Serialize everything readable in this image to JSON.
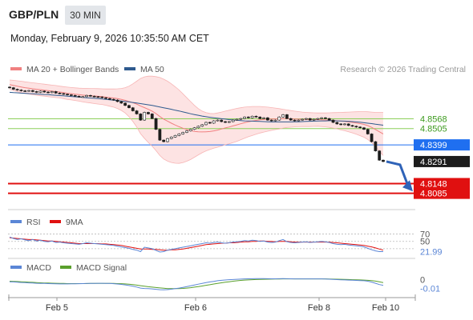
{
  "header": {
    "symbol": "GBP/PLN",
    "timeframe": "30 MIN",
    "datetime": "Monday, February 9, 2026 10:35:50 AM CET"
  },
  "colors": {
    "ma20": "#f08080",
    "ma50": "#2e5a8e",
    "bands_fill": "#fde3e3",
    "support": "#e01010",
    "resistance": "#8ccf5a",
    "last_price_bg": "#1c1c1c",
    "ref_level_bg": "#1f6ff0",
    "rsi": "#5b86d6",
    "rsi_ma": "#e01010",
    "macd": "#5b86d6",
    "macd_signal": "#5aa02c",
    "forecast_arrow": "#2f63b8"
  },
  "chart_data": [
    {
      "type": "candlestick",
      "panel": "price",
      "legend": [
        {
          "label": "MA 20 + Bollinger Bands",
          "color_key": "ma20"
        },
        {
          "label": "MA 50",
          "color_key": "ma50"
        }
      ],
      "legend_placement": "top-left",
      "watermark": "Research © 2026 Trading Central",
      "x_tick_labels": [
        "Feb 5",
        "Feb 6",
        "Feb 8",
        "Feb 10"
      ],
      "ylim": [
        4.8,
        4.882
      ],
      "resistance_levels": [
        "4.8568",
        "4.8505"
      ],
      "reference_level": "4.8399",
      "last_price": "4.8291",
      "support_levels": [
        "4.8148",
        "4.8085"
      ],
      "close": [
        4.877,
        4.876,
        4.8755,
        4.875,
        4.8748,
        4.8752,
        4.8745,
        4.874,
        4.8748,
        4.8742,
        4.8738,
        4.8745,
        4.8735,
        4.8732,
        4.8728,
        4.8724,
        4.872,
        4.8715,
        4.871,
        4.8712,
        4.872,
        4.8715,
        4.8712,
        4.871,
        4.8705,
        4.87,
        4.8695,
        4.869,
        4.868,
        4.867,
        4.8655,
        4.864,
        4.862,
        4.86,
        4.856,
        4.861,
        4.86,
        4.857,
        4.85,
        4.843,
        4.842,
        4.844,
        4.845,
        4.846,
        4.847,
        4.848,
        4.849,
        4.85,
        4.851,
        4.852,
        4.853,
        4.8545,
        4.854,
        4.8555,
        4.856,
        4.855,
        4.8545,
        4.855,
        4.856,
        4.8565,
        4.857,
        4.858,
        4.8575,
        4.8585,
        4.858,
        4.857,
        4.8575,
        4.856,
        4.8555,
        4.856,
        4.858,
        4.8595,
        4.857,
        4.856,
        4.8555,
        4.856,
        4.8565,
        4.857,
        4.856,
        4.8565,
        4.857,
        4.8575,
        4.857,
        4.856,
        4.8545,
        4.8535,
        4.853,
        4.8535,
        4.8525,
        4.852,
        4.8515,
        4.851,
        4.85,
        4.847,
        4.842,
        4.836,
        4.83,
        4.8291
      ],
      "ma20": [
        4.879,
        4.8785,
        4.878,
        4.8775,
        4.877,
        4.8767,
        4.8763,
        4.876,
        4.8757,
        4.8754,
        4.8751,
        4.8748,
        4.8745,
        4.8742,
        4.8738,
        4.8734,
        4.8731,
        4.8728,
        4.8725,
        4.8722,
        4.872,
        4.8718,
        4.8716,
        4.8714,
        4.8712,
        4.8709,
        4.8706,
        4.8703,
        4.8699,
        4.8694,
        4.8688,
        4.8681,
        4.8673,
        4.8664,
        4.8651,
        4.8641,
        4.863,
        4.8618,
        4.8602,
        4.8583,
        4.8566,
        4.8553,
        4.854,
        4.8528,
        4.8517,
        4.8507,
        4.8499,
        4.8492,
        4.8487,
        4.8484,
        4.8483,
        4.8484,
        4.8486,
        4.849,
        4.8495,
        4.8502,
        4.8509,
        4.8515,
        4.8522,
        4.8529,
        4.8536,
        4.8543,
        4.8549,
        4.8554,
        4.8558,
        4.8562,
        4.8564,
        4.8566,
        4.8567,
        4.8568,
        4.8568,
        4.8569,
        4.8569,
        4.8568,
        4.8567,
        4.8566,
        4.8565,
        4.8564,
        4.8563,
        4.8563,
        4.8563,
        4.8562,
        4.8561,
        4.856,
        4.8558,
        4.8556,
        4.8553,
        4.8551,
        4.8548,
        4.8545,
        4.8541,
        4.8537,
        4.8532,
        4.8524,
        4.8513,
        4.8499,
        4.8484,
        4.847
      ],
      "bb_upper": [
        4.882,
        4.8818,
        4.8815,
        4.8812,
        4.8808,
        4.8805,
        4.8802,
        4.8799,
        4.8796,
        4.8793,
        4.879,
        4.8787,
        4.8784,
        4.878,
        4.8777,
        4.8774,
        4.8771,
        4.8769,
        4.8767,
        4.8766,
        4.8766,
        4.8765,
        4.8765,
        4.8764,
        4.8763,
        4.8762,
        4.8762,
        4.8762,
        4.8763,
        4.8765,
        4.877,
        4.878,
        4.8795,
        4.8812,
        4.883,
        4.884,
        4.8845,
        4.8845,
        4.8842,
        4.8836,
        4.8825,
        4.8812,
        4.8795,
        4.8776,
        4.8755,
        4.873,
        4.8705,
        4.868,
        4.8655,
        4.8634,
        4.8618,
        4.8608,
        4.8603,
        4.8602,
        4.8606,
        4.8612,
        4.8618,
        4.8624,
        4.863,
        4.8636,
        4.864,
        4.8644,
        4.8646,
        4.8648,
        4.8648,
        4.8648,
        4.8646,
        4.8644,
        4.8641,
        4.8638,
        4.8634,
        4.863,
        4.8626,
        4.8622,
        4.8618,
        4.8615,
        4.8612,
        4.861,
        4.8608,
        4.8607,
        4.8606,
        4.8606,
        4.8606,
        4.8607,
        4.8608,
        4.8609,
        4.861,
        4.8611,
        4.8612,
        4.8613,
        4.8614,
        4.8615,
        4.8615,
        4.8614,
        4.8612,
        4.861,
        4.861,
        4.861
      ],
      "bb_lower": [
        4.876,
        4.8752,
        4.8745,
        4.8738,
        4.8732,
        4.8729,
        4.8724,
        4.8721,
        4.8718,
        4.8715,
        4.8712,
        4.8709,
        4.8706,
        4.8704,
        4.8699,
        4.8694,
        4.8691,
        4.8687,
        4.8683,
        4.8678,
        4.8674,
        4.8671,
        4.8667,
        4.8664,
        4.8661,
        4.8656,
        4.865,
        4.8644,
        4.8635,
        4.8623,
        4.8606,
        4.8582,
        4.8551,
        4.8516,
        4.8472,
        4.8442,
        4.8415,
        4.8391,
        4.8362,
        4.833,
        4.8307,
        4.8294,
        4.8285,
        4.828,
        4.8279,
        4.8284,
        4.8293,
        4.8304,
        4.8319,
        4.8334,
        4.8348,
        4.836,
        4.8369,
        4.8378,
        4.8384,
        4.8392,
        4.84,
        4.8406,
        4.8414,
        4.8422,
        4.8432,
        4.8442,
        4.8452,
        4.846,
        4.8468,
        4.8476,
        4.8482,
        4.8488,
        4.8493,
        4.8498,
        4.8502,
        4.8508,
        4.8512,
        4.8514,
        4.8516,
        4.8517,
        4.8518,
        4.8518,
        4.8518,
        4.8519,
        4.852,
        4.8518,
        4.8516,
        4.8513,
        4.8508,
        4.8503,
        4.8496,
        4.8491,
        4.8484,
        4.8477,
        4.8468,
        4.8459,
        4.8449,
        4.8434,
        4.8414,
        4.8388,
        4.8358,
        4.833
      ],
      "ma50": [
        4.874,
        4.8738,
        4.8737,
        4.8735,
        4.8734,
        4.8732,
        4.8731,
        4.8729,
        4.8728,
        4.8726,
        4.8725,
        4.8723,
        4.8721,
        4.8719,
        4.8717,
        4.8715,
        4.8713,
        4.8711,
        4.8709,
        4.8707,
        4.8705,
        4.8703,
        4.8701,
        4.8699,
        4.8697,
        4.8694,
        4.8692,
        4.8689,
        4.8687,
        4.8684,
        4.8681,
        4.8678,
        4.8674,
        4.8671,
        4.8667,
        4.8663,
        4.8659,
        4.8655,
        4.865,
        4.8645,
        4.864,
        4.8635,
        4.863,
        4.8624,
        4.8619,
        4.8613,
        4.8607,
        4.8601,
        4.8596,
        4.8591,
        4.8586,
        4.8582,
        4.8578,
        4.8575,
        4.8572,
        4.8569,
        4.8566,
        4.8563,
        4.8561,
        4.8559,
        4.8557,
        4.8555,
        4.8554,
        4.8553,
        4.8552,
        4.8551,
        4.855,
        4.8549,
        4.8548,
        4.8548,
        4.8548,
        4.8548,
        4.8548,
        4.8548,
        4.8549,
        4.8549,
        4.855,
        4.8551,
        4.8552,
        4.8553,
        4.8554,
        4.8555,
        4.8555,
        4.8556,
        4.8556,
        4.8555,
        4.8554,
        4.8553,
        4.8552,
        4.855,
        4.8548,
        4.8546,
        4.8543,
        4.854,
        4.8537,
        4.8533,
        4.853,
        4.8527
      ],
      "forecast": {
        "from": 4.8291,
        "to": 4.8108
      }
    },
    {
      "type": "line",
      "panel": "rsi",
      "legend": [
        {
          "label": "RSI",
          "color_key": "rsi"
        },
        {
          "label": "9MA",
          "color_key": "rsi_ma"
        }
      ],
      "ylim": [
        10,
        80
      ],
      "levels": [
        70,
        50
      ],
      "level_labels": [
        "70",
        "50"
      ],
      "last_value_label": "21.99",
      "rsi": [
        62,
        58,
        55,
        57,
        54,
        52,
        55,
        51,
        53,
        50,
        49,
        51,
        47,
        48,
        46,
        45,
        44,
        43,
        42,
        44,
        46,
        45,
        44,
        43,
        42,
        41,
        40,
        39,
        37,
        35,
        33,
        31,
        28,
        26,
        22,
        34,
        32,
        30,
        25,
        21,
        22,
        26,
        28,
        30,
        32,
        34,
        36,
        38,
        40,
        42,
        44,
        46,
        45,
        47,
        48,
        46,
        45,
        46,
        48,
        49,
        50,
        52,
        51,
        53,
        52,
        50,
        51,
        48,
        47,
        48,
        52,
        55,
        49,
        47,
        46,
        47,
        48,
        49,
        47,
        48,
        49,
        50,
        49,
        47,
        44,
        42,
        41,
        42,
        40,
        39,
        38,
        37,
        35,
        31,
        27,
        24,
        22,
        21.99
      ],
      "rsi_ma": [
        60,
        59,
        58,
        57,
        56,
        55,
        55,
        54,
        53,
        52,
        51,
        51,
        50,
        49,
        48,
        47,
        46,
        45,
        44,
        44,
        44,
        44,
        44,
        44,
        43,
        43,
        42,
        41,
        40,
        39,
        37,
        35,
        33,
        31,
        29,
        29,
        29,
        28,
        28,
        27,
        26,
        26,
        27,
        27,
        28,
        29,
        31,
        33,
        35,
        37,
        39,
        41,
        42,
        43,
        44,
        45,
        45,
        46,
        46,
        47,
        48,
        49,
        49,
        50,
        50,
        51,
        51,
        50,
        50,
        49,
        50,
        50,
        50,
        49,
        48,
        48,
        48,
        48,
        48,
        48,
        48,
        48,
        48,
        48,
        47,
        46,
        45,
        44,
        43,
        42,
        41,
        40,
        39,
        37,
        35,
        32,
        29,
        26
      ]
    },
    {
      "type": "line",
      "panel": "macd",
      "legend": [
        {
          "label": "MACD",
          "color_key": "macd"
        },
        {
          "label": "MACD Signal",
          "color_key": "macd_signal"
        }
      ],
      "ylim": [
        -0.016,
        0.006
      ],
      "zero_label": "0",
      "last_value_label": "-0.01",
      "macd": [
        -0.002,
        -0.0022,
        -0.0024,
        -0.0027,
        -0.0029,
        -0.0031,
        -0.0033,
        -0.0035,
        -0.0036,
        -0.0037,
        -0.0038,
        -0.0039,
        -0.004,
        -0.0041,
        -0.0041,
        -0.0041,
        -0.004,
        -0.004,
        -0.0039,
        -0.0038,
        -0.0037,
        -0.0036,
        -0.0036,
        -0.0035,
        -0.0035,
        -0.0036,
        -0.0037,
        -0.0039,
        -0.0042,
        -0.0046,
        -0.0051,
        -0.0057,
        -0.0064,
        -0.0072,
        -0.0082,
        -0.0086,
        -0.0088,
        -0.009,
        -0.0094,
        -0.0098,
        -0.0099,
        -0.0097,
        -0.0093,
        -0.0088,
        -0.0082,
        -0.0075,
        -0.0068,
        -0.006,
        -0.0052,
        -0.0044,
        -0.0036,
        -0.0028,
        -0.0022,
        -0.0016,
        -0.001,
        -0.0006,
        -0.0003,
        0.0,
        0.0002,
        0.0004,
        0.0006,
        0.0008,
        0.0009,
        0.001,
        0.0011,
        0.0011,
        0.0011,
        0.001,
        0.0009,
        0.0009,
        0.001,
        0.0011,
        0.001,
        0.0009,
        0.0008,
        0.0008,
        0.0008,
        0.0008,
        0.0008,
        0.0008,
        0.0008,
        0.0008,
        0.0007,
        0.0005,
        0.0003,
        0.0001,
        -0.0001,
        -0.0002,
        -0.0004,
        -0.0005,
        -0.0007,
        -0.0008,
        -0.001,
        -0.0015,
        -0.0023,
        -0.0035,
        -0.0048,
        -0.0055
      ],
      "signal": [
        -0.0015,
        -0.0016,
        -0.0018,
        -0.002,
        -0.0022,
        -0.0024,
        -0.0026,
        -0.0028,
        -0.003,
        -0.0032,
        -0.0033,
        -0.0034,
        -0.0035,
        -0.0036,
        -0.0037,
        -0.0038,
        -0.0038,
        -0.0038,
        -0.0038,
        -0.0038,
        -0.0038,
        -0.0037,
        -0.0037,
        -0.0037,
        -0.0036,
        -0.0036,
        -0.0036,
        -0.0037,
        -0.0038,
        -0.0039,
        -0.0041,
        -0.0044,
        -0.0048,
        -0.0053,
        -0.0059,
        -0.0064,
        -0.0069,
        -0.0073,
        -0.0077,
        -0.0081,
        -0.0084,
        -0.0087,
        -0.0088,
        -0.0088,
        -0.0087,
        -0.0085,
        -0.0082,
        -0.0078,
        -0.0073,
        -0.0068,
        -0.0062,
        -0.0055,
        -0.0049,
        -0.0042,
        -0.0036,
        -0.003,
        -0.0025,
        -0.002,
        -0.0015,
        -0.0011,
        -0.0007,
        -0.0004,
        -0.0002,
        0.0,
        0.0002,
        0.0003,
        0.0004,
        0.0005,
        0.0006,
        0.0007,
        0.0007,
        0.0008,
        0.0008,
        0.0008,
        0.0008,
        0.0008,
        0.0008,
        0.0008,
        0.0008,
        0.0008,
        0.0008,
        0.0008,
        0.0008,
        0.0007,
        0.0006,
        0.0005,
        0.0004,
        0.0003,
        0.0002,
        0.0,
        -0.0001,
        -0.0002,
        -0.0004,
        -0.0006,
        -0.0009,
        -0.0014,
        -0.0021,
        -0.0028
      ]
    }
  ]
}
